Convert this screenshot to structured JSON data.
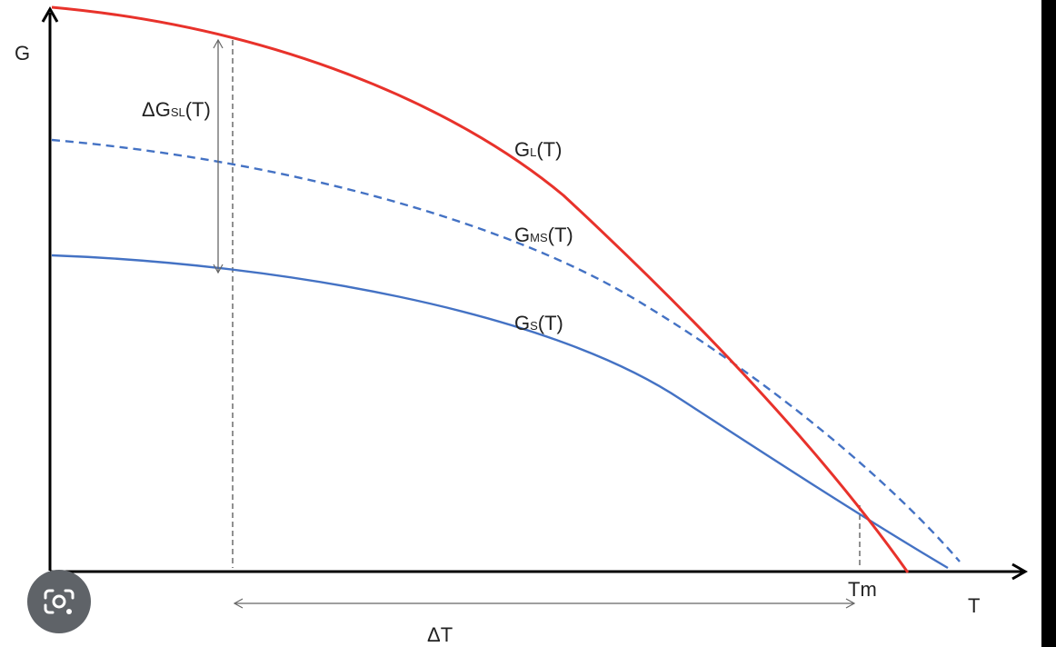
{
  "axes": {
    "y_label": "G",
    "x_label": "T"
  },
  "curves": {
    "liquid": {
      "name": "G",
      "subscript": "L",
      "suffix": "(T)",
      "color": "#e8322b"
    },
    "metastable": {
      "name": "G",
      "subscript": "MS",
      "suffix": "(T)",
      "color": "#4472c4"
    },
    "solid": {
      "name": "G",
      "subscript": "S",
      "suffix": "(T)",
      "color": "#4472c4"
    }
  },
  "annotations": {
    "delta_g": {
      "prefix": "ΔG",
      "subscript": "SL",
      "suffix": "(T)"
    },
    "melting_temp": "Tm",
    "delta_t": "ΔT"
  },
  "overlay": {
    "icon": "google-lens-icon"
  }
}
